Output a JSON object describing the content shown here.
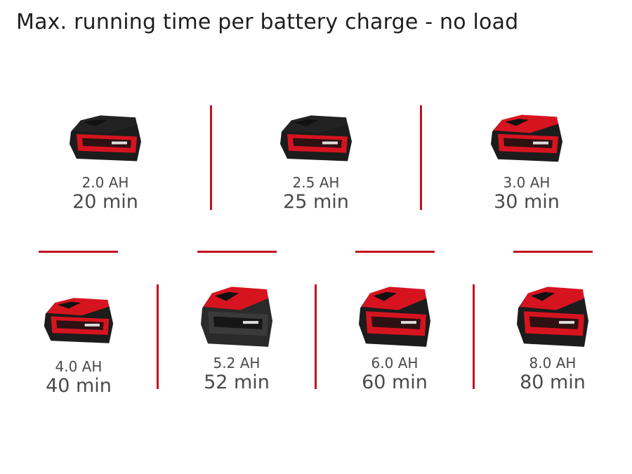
{
  "title": "Max. running time per battery charge - no load",
  "accent_color": "#c1121f",
  "batteries": [
    {
      "capacity": "2.0 AH",
      "time": "20 min",
      "icon": "battery-pack-icon"
    },
    {
      "capacity": "2.5 AH",
      "time": "25 min",
      "icon": "battery-pack-icon"
    },
    {
      "capacity": "3.0 AH",
      "time": "30 min",
      "icon": "battery-pack-icon"
    },
    {
      "capacity": "4.0 AH",
      "time": "40 min",
      "icon": "battery-pack-icon"
    },
    {
      "capacity": "5.2 AH",
      "time": "52 min",
      "icon": "battery-pack-icon"
    },
    {
      "capacity": "6.0 AH",
      "time": "60 min",
      "icon": "battery-pack-icon"
    },
    {
      "capacity": "8.0 AH",
      "time": "80 min",
      "icon": "battery-pack-icon"
    }
  ]
}
